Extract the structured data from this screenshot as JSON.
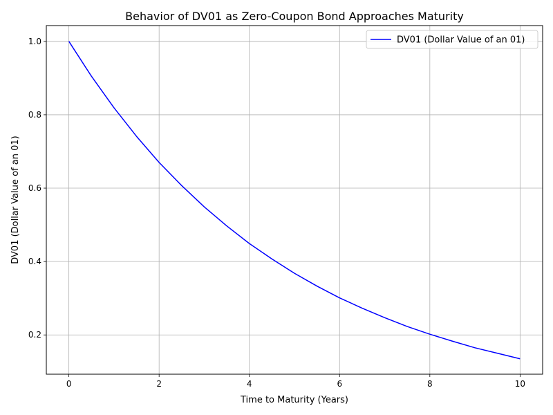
{
  "chart_data": {
    "type": "line",
    "title": "Behavior of DV01 as Zero-Coupon Bond Approaches Maturity",
    "xlabel": "Time to Maturity (Years)",
    "ylabel": "DV01 (Dollar Value of an 01)",
    "xlim": [
      -0.5,
      10.5
    ],
    "ylim": [
      0.093,
      1.043
    ],
    "xticks": [
      0,
      2,
      4,
      6,
      8,
      10
    ],
    "xtick_labels": [
      "0",
      "2",
      "4",
      "6",
      "8",
      "10"
    ],
    "yticks": [
      0.2,
      0.4,
      0.6,
      0.8,
      1.0
    ],
    "ytick_labels": [
      "0.2",
      "0.4",
      "0.6",
      "0.8",
      "1.0"
    ],
    "grid": true,
    "legend_position": "top-right",
    "series": [
      {
        "name": "DV01 (Dollar Value of an 01)",
        "color": "#0000ff",
        "x": [
          0,
          0.5,
          1,
          1.5,
          2,
          2.5,
          3,
          3.5,
          4,
          4.5,
          5,
          5.5,
          6,
          6.5,
          7,
          7.5,
          8,
          8.5,
          9,
          9.5,
          10
        ],
        "values": [
          1.0,
          0.905,
          0.819,
          0.741,
          0.67,
          0.607,
          0.549,
          0.497,
          0.449,
          0.407,
          0.368,
          0.333,
          0.301,
          0.273,
          0.247,
          0.223,
          0.202,
          0.183,
          0.165,
          0.15,
          0.135
        ]
      }
    ]
  }
}
